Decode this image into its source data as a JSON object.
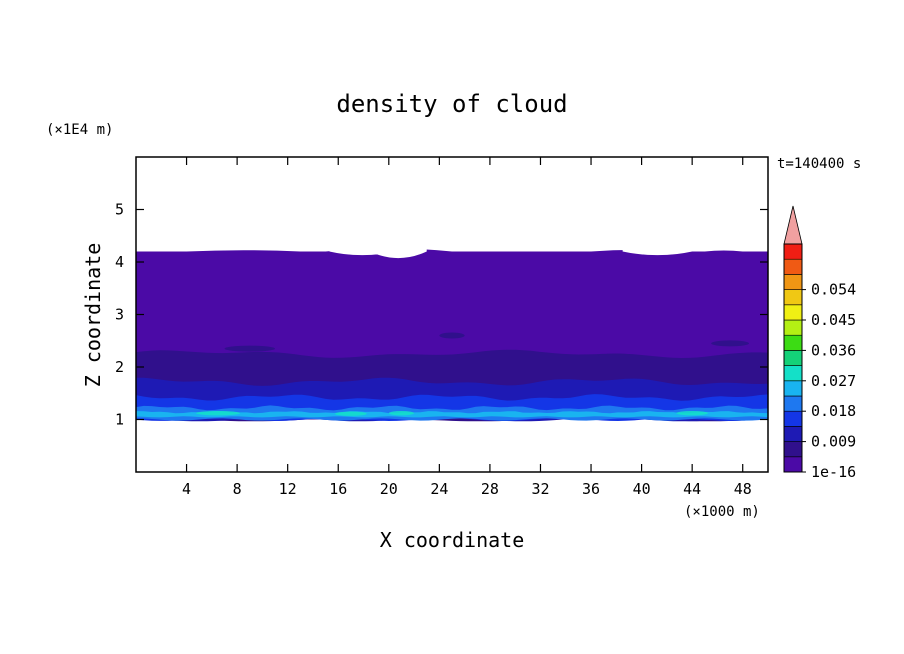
{
  "chart_data": {
    "type": "heatmap",
    "title": "density of cloud",
    "xlabel": "X coordinate",
    "ylabel": "Z coordinate",
    "x_unit": "(×1000 m)",
    "y_unit": "(×1E4 m)",
    "time_label": "t=140400 s",
    "xlim": [
      0,
      50
    ],
    "ylim": [
      0,
      6
    ],
    "x_ticks": [
      4,
      8,
      12,
      16,
      20,
      24,
      28,
      32,
      36,
      40,
      44,
      48
    ],
    "y_ticks": [
      1,
      2,
      3,
      4,
      5
    ],
    "colorbar": {
      "tick_labels": [
        "1e-16",
        "0.009",
        "0.018",
        "0.027",
        "0.036",
        "0.045",
        "0.054"
      ],
      "tick_values": [
        0,
        0.009,
        0.018,
        0.027,
        0.036,
        0.045,
        0.054
      ],
      "range": [
        0,
        0.0675
      ],
      "levels": [
        {
          "value": 0.0,
          "color": "#4b0aa6"
        },
        {
          "value": 0.0045,
          "color": "#30108c"
        },
        {
          "value": 0.009,
          "color": "#1e1ab4"
        },
        {
          "value": 0.0135,
          "color": "#1436e6"
        },
        {
          "value": 0.018,
          "color": "#1e78f0"
        },
        {
          "value": 0.0225,
          "color": "#19b4f0"
        },
        {
          "value": 0.027,
          "color": "#14e0c8"
        },
        {
          "value": 0.0315,
          "color": "#14d278"
        },
        {
          "value": 0.036,
          "color": "#3cdc14"
        },
        {
          "value": 0.0405,
          "color": "#b4f014"
        },
        {
          "value": 0.045,
          "color": "#f0f014"
        },
        {
          "value": 0.0495,
          "color": "#f0c814"
        },
        {
          "value": 0.054,
          "color": "#f09614"
        },
        {
          "value": 0.0585,
          "color": "#f05a14"
        },
        {
          "value": 0.063,
          "color": "#f01e14"
        }
      ],
      "extend_color": "#f0a0a0"
    },
    "field": {
      "cloud_base_z": 1.0,
      "cloud_top_z": 4.2,
      "description_layers": [
        {
          "z": [
            3.0,
            4.2
          ],
          "level": 0.0
        },
        {
          "z": [
            2.5,
            3.0
          ],
          "level": 0.0
        },
        {
          "z": [
            2.2,
            2.5
          ],
          "level": 0.0045
        },
        {
          "z": [
            1.7,
            2.2
          ],
          "level": 0.0045
        },
        {
          "z": [
            1.4,
            1.7
          ],
          "level": 0.009
        },
        {
          "z": [
            1.2,
            1.4
          ],
          "level": 0.0135
        },
        {
          "z": [
            1.0,
            1.2
          ],
          "level": 0.018
        }
      ]
    }
  }
}
